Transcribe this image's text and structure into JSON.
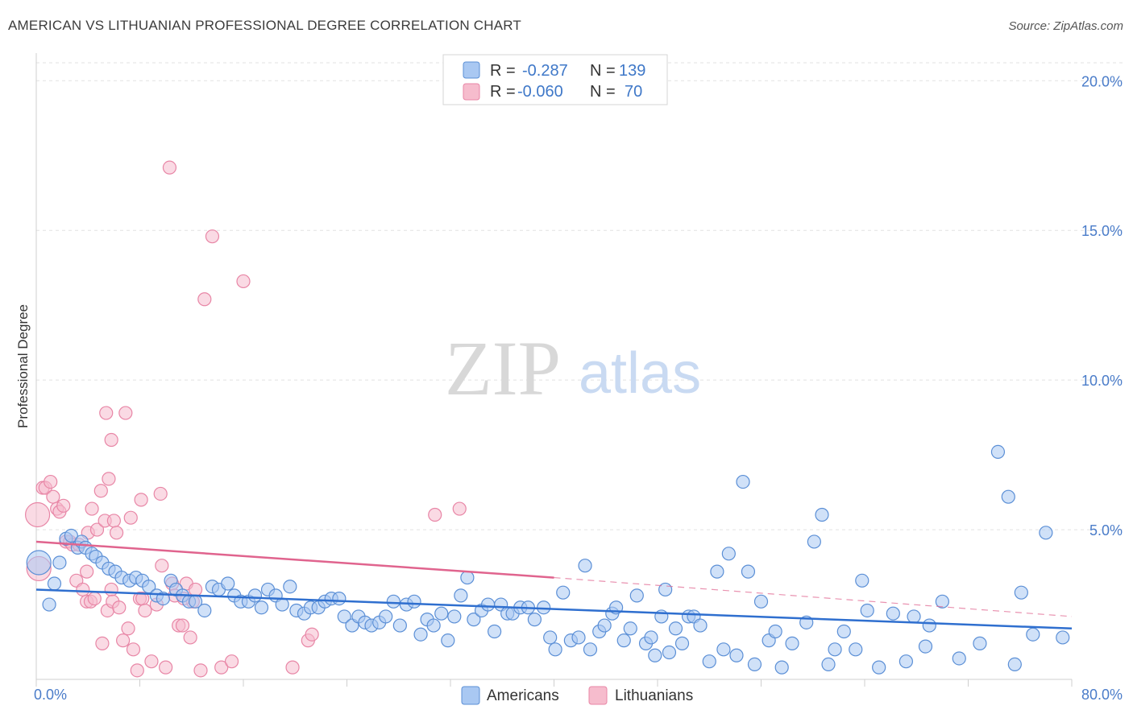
{
  "title": "AMERICAN VS LITHUANIAN PROFESSIONAL DEGREE CORRELATION CHART",
  "source": "Source: ZipAtlas.com",
  "colors": {
    "americans_fill": "#a9c8f2",
    "americans_stroke": "#5b8fd6",
    "americans_line": "#2f6fcf",
    "lithuanians_fill": "#f6bccd",
    "lithuanians_stroke": "#e886a6",
    "lithuanians_line": "#e0648e",
    "tick_text": "#4a7cc9",
    "grid": "#e2e2e2"
  },
  "legend_top": {
    "rows": [
      {
        "series": "Americans",
        "r_label": "R =",
        "r_value": "-0.287",
        "n_label": "N =",
        "n_value": "139"
      },
      {
        "series": "Lithuanians",
        "r_label": "R =",
        "r_value": "-0.060",
        "n_label": "N =",
        "n_value": "70"
      }
    ]
  },
  "watermark": {
    "zip": "ZIP",
    "atlas": "atlas"
  },
  "chart_data": {
    "type": "scatter",
    "title": "AMERICAN VS LITHUANIAN PROFESSIONAL DEGREE CORRELATION CHART",
    "xlabel": "",
    "ylabel": "Professional Degree",
    "xlim": [
      0,
      80
    ],
    "ylim": [
      0,
      20.6
    ],
    "x_tick_labels": [
      "0.0%",
      "80.0%"
    ],
    "y_ticks": [
      5,
      10,
      15,
      20
    ],
    "y_tick_labels": [
      "5.0%",
      "10.0%",
      "15.0%",
      "20.0%"
    ],
    "grid": true,
    "legend": [
      "Americans",
      "Lithuanians"
    ],
    "series": [
      {
        "name": "Americans",
        "trendline": {
          "x": [
            0,
            80
          ],
          "y": [
            3.0,
            1.7
          ],
          "style": "solid"
        },
        "points": [
          [
            0.2,
            3.9
          ],
          [
            1.0,
            2.5
          ],
          [
            1.4,
            3.2
          ],
          [
            1.8,
            3.9
          ],
          [
            2.3,
            4.7
          ],
          [
            2.7,
            4.8
          ],
          [
            3.2,
            4.4
          ],
          [
            3.5,
            4.6
          ],
          [
            3.8,
            4.4
          ],
          [
            4.3,
            4.2
          ],
          [
            4.6,
            4.1
          ],
          [
            5.1,
            3.9
          ],
          [
            5.6,
            3.7
          ],
          [
            6.1,
            3.6
          ],
          [
            6.6,
            3.4
          ],
          [
            7.2,
            3.3
          ],
          [
            7.7,
            3.4
          ],
          [
            8.2,
            3.3
          ],
          [
            8.7,
            3.1
          ],
          [
            9.3,
            2.8
          ],
          [
            9.8,
            2.7
          ],
          [
            10.4,
            3.3
          ],
          [
            10.8,
            3.0
          ],
          [
            11.3,
            2.8
          ],
          [
            11.8,
            2.6
          ],
          [
            12.3,
            2.6
          ],
          [
            13.0,
            2.3
          ],
          [
            13.6,
            3.1
          ],
          [
            14.1,
            3.0
          ],
          [
            14.8,
            3.2
          ],
          [
            15.3,
            2.8
          ],
          [
            15.8,
            2.6
          ],
          [
            16.4,
            2.6
          ],
          [
            16.9,
            2.8
          ],
          [
            17.4,
            2.4
          ],
          [
            17.9,
            3.0
          ],
          [
            18.5,
            2.8
          ],
          [
            19.0,
            2.5
          ],
          [
            19.6,
            3.1
          ],
          [
            20.1,
            2.3
          ],
          [
            20.7,
            2.2
          ],
          [
            21.2,
            2.4
          ],
          [
            21.8,
            2.4
          ],
          [
            22.3,
            2.6
          ],
          [
            22.8,
            2.7
          ],
          [
            23.4,
            2.7
          ],
          [
            23.8,
            2.1
          ],
          [
            24.4,
            1.8
          ],
          [
            24.9,
            2.1
          ],
          [
            25.4,
            1.9
          ],
          [
            25.9,
            1.8
          ],
          [
            26.5,
            1.9
          ],
          [
            27.0,
            2.1
          ],
          [
            27.6,
            2.6
          ],
          [
            28.1,
            1.8
          ],
          [
            28.6,
            2.5
          ],
          [
            29.2,
            2.6
          ],
          [
            29.7,
            1.5
          ],
          [
            30.2,
            2.0
          ],
          [
            30.7,
            1.8
          ],
          [
            31.3,
            2.2
          ],
          [
            31.8,
            1.3
          ],
          [
            32.3,
            2.1
          ],
          [
            32.8,
            2.8
          ],
          [
            33.3,
            3.4
          ],
          [
            33.8,
            2.0
          ],
          [
            34.4,
            2.3
          ],
          [
            34.9,
            2.5
          ],
          [
            35.4,
            1.6
          ],
          [
            35.9,
            2.5
          ],
          [
            36.4,
            2.2
          ],
          [
            36.8,
            2.2
          ],
          [
            37.4,
            2.4
          ],
          [
            38.0,
            2.4
          ],
          [
            38.5,
            2.0
          ],
          [
            39.2,
            2.4
          ],
          [
            39.7,
            1.4
          ],
          [
            40.1,
            1.0
          ],
          [
            40.7,
            2.9
          ],
          [
            41.3,
            1.3
          ],
          [
            41.9,
            1.4
          ],
          [
            42.4,
            3.8
          ],
          [
            42.8,
            1.0
          ],
          [
            43.5,
            1.6
          ],
          [
            43.9,
            1.8
          ],
          [
            44.5,
            2.2
          ],
          [
            44.8,
            2.4
          ],
          [
            45.4,
            1.3
          ],
          [
            45.9,
            1.7
          ],
          [
            46.4,
            2.8
          ],
          [
            47.1,
            1.2
          ],
          [
            47.5,
            1.4
          ],
          [
            47.8,
            0.8
          ],
          [
            48.3,
            2.1
          ],
          [
            48.6,
            3.0
          ],
          [
            48.9,
            0.9
          ],
          [
            49.4,
            1.7
          ],
          [
            49.9,
            1.2
          ],
          [
            50.4,
            2.1
          ],
          [
            50.8,
            2.1
          ],
          [
            51.3,
            1.8
          ],
          [
            52.0,
            0.6
          ],
          [
            52.6,
            3.6
          ],
          [
            53.1,
            1.0
          ],
          [
            53.5,
            4.2
          ],
          [
            54.1,
            0.8
          ],
          [
            54.6,
            6.6
          ],
          [
            55.0,
            3.6
          ],
          [
            55.5,
            0.5
          ],
          [
            56.0,
            2.6
          ],
          [
            56.6,
            1.3
          ],
          [
            57.1,
            1.6
          ],
          [
            57.6,
            0.4
          ],
          [
            58.4,
            1.2
          ],
          [
            59.5,
            1.9
          ],
          [
            60.1,
            4.6
          ],
          [
            60.7,
            5.5
          ],
          [
            61.2,
            0.5
          ],
          [
            61.7,
            1.0
          ],
          [
            62.4,
            1.6
          ],
          [
            63.3,
            1.0
          ],
          [
            63.8,
            3.3
          ],
          [
            64.2,
            2.3
          ],
          [
            65.1,
            0.4
          ],
          [
            66.2,
            2.2
          ],
          [
            67.2,
            0.6
          ],
          [
            67.8,
            2.1
          ],
          [
            68.7,
            1.1
          ],
          [
            71.3,
            0.7
          ],
          [
            72.9,
            1.2
          ],
          [
            75.6,
            0.5
          ],
          [
            74.3,
            7.6
          ],
          [
            75.1,
            6.1
          ],
          [
            78.0,
            4.9
          ],
          [
            77.0,
            1.5
          ],
          [
            79.3,
            1.4
          ],
          [
            76.1,
            2.9
          ],
          [
            70.0,
            2.6
          ],
          [
            69.0,
            1.8
          ]
        ]
      },
      {
        "name": "Lithuanians",
        "trendline": {
          "x": [
            0,
            40
          ],
          "y": [
            4.6,
            3.4
          ],
          "style": "solid",
          "extended_dashed_to": [
            80,
            2.1
          ]
        },
        "points": [
          [
            0.1,
            5.5
          ],
          [
            0.2,
            3.7
          ],
          [
            0.5,
            6.4
          ],
          [
            0.7,
            6.4
          ],
          [
            1.1,
            6.6
          ],
          [
            1.3,
            6.1
          ],
          [
            1.6,
            5.7
          ],
          [
            1.8,
            5.6
          ],
          [
            2.1,
            5.8
          ],
          [
            2.3,
            4.6
          ],
          [
            2.6,
            4.6
          ],
          [
            2.8,
            4.5
          ],
          [
            3.1,
            3.3
          ],
          [
            3.3,
            4.5
          ],
          [
            3.6,
            3.0
          ],
          [
            3.9,
            3.6
          ],
          [
            4.0,
            4.9
          ],
          [
            3.9,
            2.6
          ],
          [
            4.2,
            2.6
          ],
          [
            4.3,
            5.7
          ],
          [
            4.5,
            2.7
          ],
          [
            4.7,
            5.0
          ],
          [
            5.0,
            6.3
          ],
          [
            5.1,
            1.2
          ],
          [
            5.3,
            5.3
          ],
          [
            5.6,
            6.7
          ],
          [
            5.8,
            3.0
          ],
          [
            5.5,
            2.3
          ],
          [
            5.9,
            2.6
          ],
          [
            5.4,
            8.9
          ],
          [
            5.8,
            8.0
          ],
          [
            6.0,
            5.3
          ],
          [
            6.2,
            4.9
          ],
          [
            6.4,
            2.4
          ],
          [
            6.7,
            1.3
          ],
          [
            6.9,
            8.9
          ],
          [
            7.1,
            1.7
          ],
          [
            7.3,
            5.4
          ],
          [
            7.5,
            1.0
          ],
          [
            7.8,
            0.3
          ],
          [
            8.0,
            2.7
          ],
          [
            8.1,
            6.0
          ],
          [
            8.2,
            2.7
          ],
          [
            8.4,
            2.3
          ],
          [
            8.9,
            0.6
          ],
          [
            9.3,
            2.5
          ],
          [
            9.6,
            6.2
          ],
          [
            9.7,
            3.8
          ],
          [
            10.0,
            0.4
          ],
          [
            10.3,
            17.1
          ],
          [
            10.5,
            3.2
          ],
          [
            10.7,
            2.8
          ],
          [
            11.0,
            1.8
          ],
          [
            11.3,
            1.8
          ],
          [
            11.6,
            3.2
          ],
          [
            11.9,
            1.4
          ],
          [
            12.1,
            2.6
          ],
          [
            12.3,
            3.0
          ],
          [
            12.7,
            0.3
          ],
          [
            13.0,
            12.7
          ],
          [
            13.6,
            14.8
          ],
          [
            14.3,
            0.4
          ],
          [
            15.1,
            0.6
          ],
          [
            16.0,
            13.3
          ],
          [
            19.8,
            0.4
          ],
          [
            21.0,
            1.3
          ],
          [
            21.3,
            1.5
          ],
          [
            30.8,
            5.5
          ],
          [
            32.7,
            5.7
          ],
          [
            11.4,
            2.7
          ]
        ]
      }
    ]
  },
  "bottom_legend": [
    "Americans",
    "Lithuanians"
  ]
}
